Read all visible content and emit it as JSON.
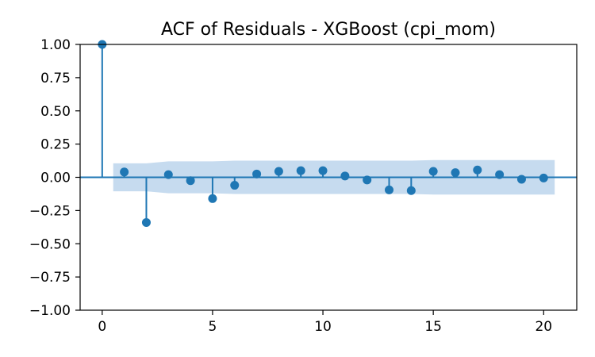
{
  "chart_data": {
    "type": "stem",
    "title": "ACF of Residuals - XGBoost (cpi_mom)",
    "xlabel": "",
    "ylabel": "",
    "xlim": [
      -1,
      21.5
    ],
    "ylim": [
      -1.0,
      1.0
    ],
    "x_ticks": [
      0,
      5,
      10,
      15,
      20
    ],
    "x_tick_labels": [
      "0",
      "5",
      "10",
      "15",
      "20"
    ],
    "y_ticks": [
      1.0,
      0.75,
      0.5,
      0.25,
      0.0,
      -0.25,
      -0.5,
      -0.75,
      -1.0
    ],
    "y_tick_labels": [
      "1.00",
      "0.75",
      "0.50",
      "0.25",
      "0.00",
      "−0.25",
      "−0.50",
      "−0.75",
      "−1.00"
    ],
    "grid": false,
    "lags": [
      0,
      1,
      2,
      3,
      4,
      5,
      6,
      7,
      8,
      9,
      10,
      11,
      12,
      13,
      14,
      15,
      16,
      17,
      18,
      19,
      20
    ],
    "values": [
      1.0,
      0.04,
      -0.34,
      0.02,
      -0.025,
      -0.16,
      -0.06,
      0.025,
      0.045,
      0.05,
      0.05,
      0.01,
      -0.02,
      -0.095,
      -0.1,
      0.045,
      0.035,
      0.055,
      0.02,
      -0.015,
      -0.005
    ],
    "confidence_band": {
      "lags": [
        0.5,
        1,
        2,
        3,
        4,
        5,
        6,
        7,
        8,
        9,
        10,
        11,
        12,
        13,
        14,
        15,
        16,
        17,
        18,
        19,
        20,
        20.5
      ],
      "upper": [
        0.105,
        0.105,
        0.105,
        0.12,
        0.12,
        0.12,
        0.125,
        0.125,
        0.125,
        0.125,
        0.125,
        0.125,
        0.125,
        0.125,
        0.125,
        0.13,
        0.13,
        0.13,
        0.13,
        0.13,
        0.13,
        0.13
      ]
    },
    "colors": {
      "stem": "#1f77b4",
      "band": "#c6dbef"
    }
  }
}
